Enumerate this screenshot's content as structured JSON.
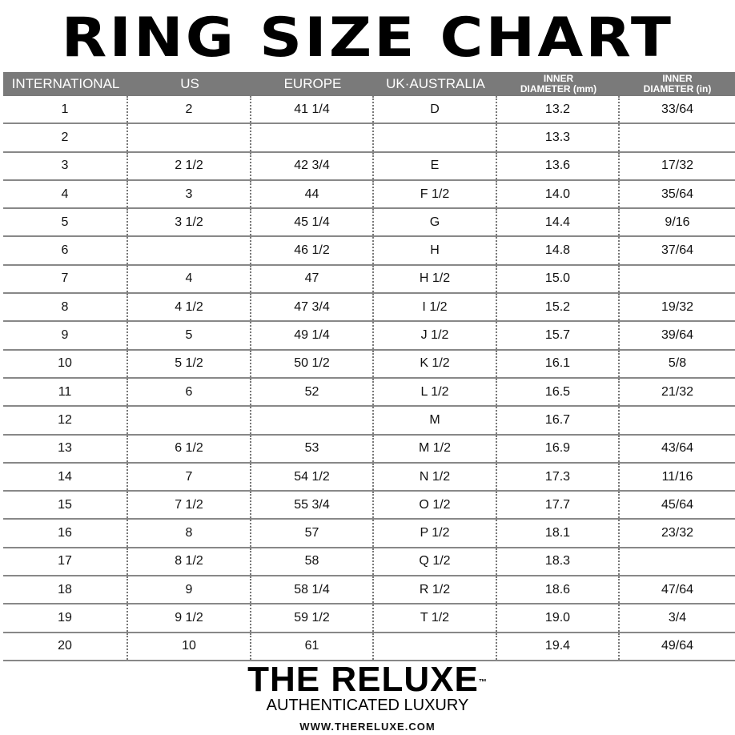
{
  "title": "RING SIZE CHART",
  "headers": [
    "INTERNATIONAL",
    "US",
    "EUROPE",
    "UK·AUSTRALIA",
    "INNER DIAMETER (mm)",
    "INNER DIAMETER (in)"
  ],
  "header_lines": {
    "h4a": "INNER",
    "h4b": "DIAMETER (mm)",
    "h5a": "INNER",
    "h5b": "DIAMETER (in)"
  },
  "rows": [
    [
      "1",
      "2",
      "41 1/4",
      "D",
      "13.2",
      "33/64"
    ],
    [
      "2",
      "",
      "",
      "",
      "13.3",
      ""
    ],
    [
      "3",
      "2 1/2",
      "42 3/4",
      "E",
      "13.6",
      "17/32"
    ],
    [
      "4",
      "3",
      "44",
      "F 1/2",
      "14.0",
      "35/64"
    ],
    [
      "5",
      "3 1/2",
      "45 1/4",
      "G",
      "14.4",
      "9/16"
    ],
    [
      "6",
      "",
      "46 1/2",
      "H",
      "14.8",
      "37/64"
    ],
    [
      "7",
      "4",
      "47",
      "H 1/2",
      "15.0",
      ""
    ],
    [
      "8",
      "4 1/2",
      "47 3/4",
      "I 1/2",
      "15.2",
      "19/32"
    ],
    [
      "9",
      "5",
      "49 1/4",
      "J 1/2",
      "15.7",
      "39/64"
    ],
    [
      "10",
      "5 1/2",
      "50 1/2",
      "K 1/2",
      "16.1",
      "5/8"
    ],
    [
      "11",
      "6",
      "52",
      "L 1/2",
      "16.5",
      "21/32"
    ],
    [
      "12",
      "",
      "",
      "M",
      "16.7",
      ""
    ],
    [
      "13",
      "6 1/2",
      "53",
      "M 1/2",
      "16.9",
      "43/64"
    ],
    [
      "14",
      "7",
      "54 1/2",
      "N 1/2",
      "17.3",
      "11/16"
    ],
    [
      "15",
      "7 1/2",
      "55 3/4",
      "O 1/2",
      "17.7",
      "45/64"
    ],
    [
      "16",
      "8",
      "57",
      "P 1/2",
      "18.1",
      "23/32"
    ],
    [
      "17",
      "8 1/2",
      "58",
      "Q 1/2",
      "18.3",
      ""
    ],
    [
      "18",
      "9",
      "58 1/4",
      "R 1/2",
      "18.6",
      "47/64"
    ],
    [
      "19",
      "9 1/2",
      "59 1/2",
      "T 1/2",
      "19.0",
      "3/4"
    ],
    [
      "20",
      "10",
      "61",
      "",
      "19.4",
      "49/64"
    ]
  ],
  "brand": {
    "name": "THE RELUXE",
    "tm": "™",
    "tagline": "AUTHENTICATED LUXURY",
    "url": "WWW.THERELUXE.COM"
  },
  "colors": {
    "header_bg": "#7a7a7a",
    "header_text": "#ffffff"
  }
}
